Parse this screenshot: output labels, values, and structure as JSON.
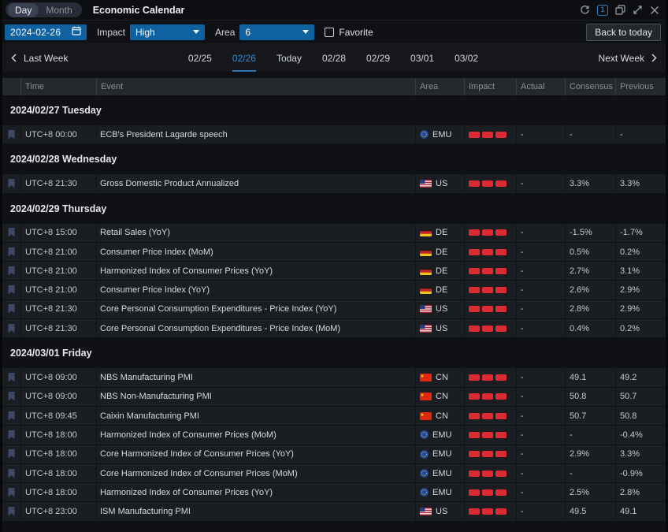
{
  "window": {
    "view_toggle": {
      "options": [
        "Day",
        "Month"
      ],
      "selected": "Day"
    },
    "title": "Economic Calendar",
    "panel_count": "1",
    "icons": [
      "refresh-icon",
      "panel-count-badge",
      "windows-icon",
      "expand-icon",
      "close-icon"
    ]
  },
  "filters": {
    "date_value": "2024-02-26",
    "impact_label": "Impact",
    "impact_value": "High",
    "area_label": "Area",
    "area_value": "6",
    "favorite_label": "Favorite",
    "favorite_checked": false,
    "back_to_today_label": "Back to today"
  },
  "week_nav": {
    "prev_label": "Last Week",
    "next_label": "Next Week",
    "days": [
      "02/25",
      "02/26",
      "Today",
      "02/28",
      "02/29",
      "03/01",
      "03/02"
    ],
    "selected": "02/26"
  },
  "table": {
    "columns": [
      "",
      "Time",
      "Event",
      "Area",
      "Impact",
      "Actual",
      "Consensus",
      "Previous"
    ],
    "sections": [
      {
        "date": "2024/02/27 Tuesday",
        "rows": [
          {
            "time": "UTC+8 00:00",
            "event": "ECB's President Lagarde speech",
            "area": "EMU",
            "impact": 3,
            "actual": "-",
            "consensus": "-",
            "previous": "-"
          }
        ]
      },
      {
        "date": "2024/02/28 Wednesday",
        "rows": [
          {
            "time": "UTC+8 21:30",
            "event": "Gross Domestic Product Annualized",
            "area": "US",
            "impact": 3,
            "actual": "-",
            "consensus": "3.3%",
            "previous": "3.3%"
          }
        ]
      },
      {
        "date": "2024/02/29 Thursday",
        "rows": [
          {
            "time": "UTC+8 15:00",
            "event": "Retail Sales (YoY)",
            "area": "DE",
            "impact": 3,
            "actual": "-",
            "consensus": "-1.5%",
            "previous": "-1.7%"
          },
          {
            "time": "UTC+8 21:00",
            "event": "Consumer Price Index (MoM)",
            "area": "DE",
            "impact": 3,
            "actual": "-",
            "consensus": "0.5%",
            "previous": "0.2%"
          },
          {
            "time": "UTC+8 21:00",
            "event": "Harmonized Index of Consumer Prices (YoY)",
            "area": "DE",
            "impact": 3,
            "actual": "-",
            "consensus": "2.7%",
            "previous": "3.1%"
          },
          {
            "time": "UTC+8 21:00",
            "event": "Consumer Price Index (YoY)",
            "area": "DE",
            "impact": 3,
            "actual": "-",
            "consensus": "2.6%",
            "previous": "2.9%"
          },
          {
            "time": "UTC+8 21:30",
            "event": "Core Personal Consumption Expenditures - Price Index (YoY)",
            "area": "US",
            "impact": 3,
            "actual": "-",
            "consensus": "2.8%",
            "previous": "2.9%"
          },
          {
            "time": "UTC+8 21:30",
            "event": "Core Personal Consumption Expenditures - Price Index (MoM)",
            "area": "US",
            "impact": 3,
            "actual": "-",
            "consensus": "0.4%",
            "previous": "0.2%"
          }
        ]
      },
      {
        "date": "2024/03/01 Friday",
        "rows": [
          {
            "time": "UTC+8 09:00",
            "event": "NBS Manufacturing PMI",
            "area": "CN",
            "impact": 3,
            "actual": "-",
            "consensus": "49.1",
            "previous": "49.2"
          },
          {
            "time": "UTC+8 09:00",
            "event": "NBS Non-Manufacturing PMI",
            "area": "CN",
            "impact": 3,
            "actual": "-",
            "consensus": "50.8",
            "previous": "50.7"
          },
          {
            "time": "UTC+8 09:45",
            "event": "Caixin Manufacturing PMI",
            "area": "CN",
            "impact": 3,
            "actual": "-",
            "consensus": "50.7",
            "previous": "50.8"
          },
          {
            "time": "UTC+8 18:00",
            "event": "Harmonized Index of Consumer Prices (MoM)",
            "area": "EMU",
            "impact": 3,
            "actual": "-",
            "consensus": "-",
            "previous": "-0.4%"
          },
          {
            "time": "UTC+8 18:00",
            "event": "Core Harmonized Index of Consumer Prices (YoY)",
            "area": "EMU",
            "impact": 3,
            "actual": "-",
            "consensus": "2.9%",
            "previous": "3.3%"
          },
          {
            "time": "UTC+8 18:00",
            "event": "Core Harmonized Index of Consumer Prices (MoM)",
            "area": "EMU",
            "impact": 3,
            "actual": "-",
            "consensus": "-",
            "previous": "-0.9%"
          },
          {
            "time": "UTC+8 18:00",
            "event": "Harmonized Index of Consumer Prices (YoY)",
            "area": "EMU",
            "impact": 3,
            "actual": "-",
            "consensus": "2.5%",
            "previous": "2.8%"
          },
          {
            "time": "UTC+8 23:00",
            "event": "ISM Manufacturing PMI",
            "area": "US",
            "impact": 3,
            "actual": "-",
            "consensus": "49.5",
            "previous": "49.1"
          }
        ]
      }
    ]
  },
  "colors": {
    "accent_blue": "#10619f",
    "tab_blue": "#2f8fd6",
    "impact_red": "#de2b31",
    "bookmark": "#3d4967",
    "row_bg": "#1a1d21",
    "header_bg": "#25282d"
  }
}
